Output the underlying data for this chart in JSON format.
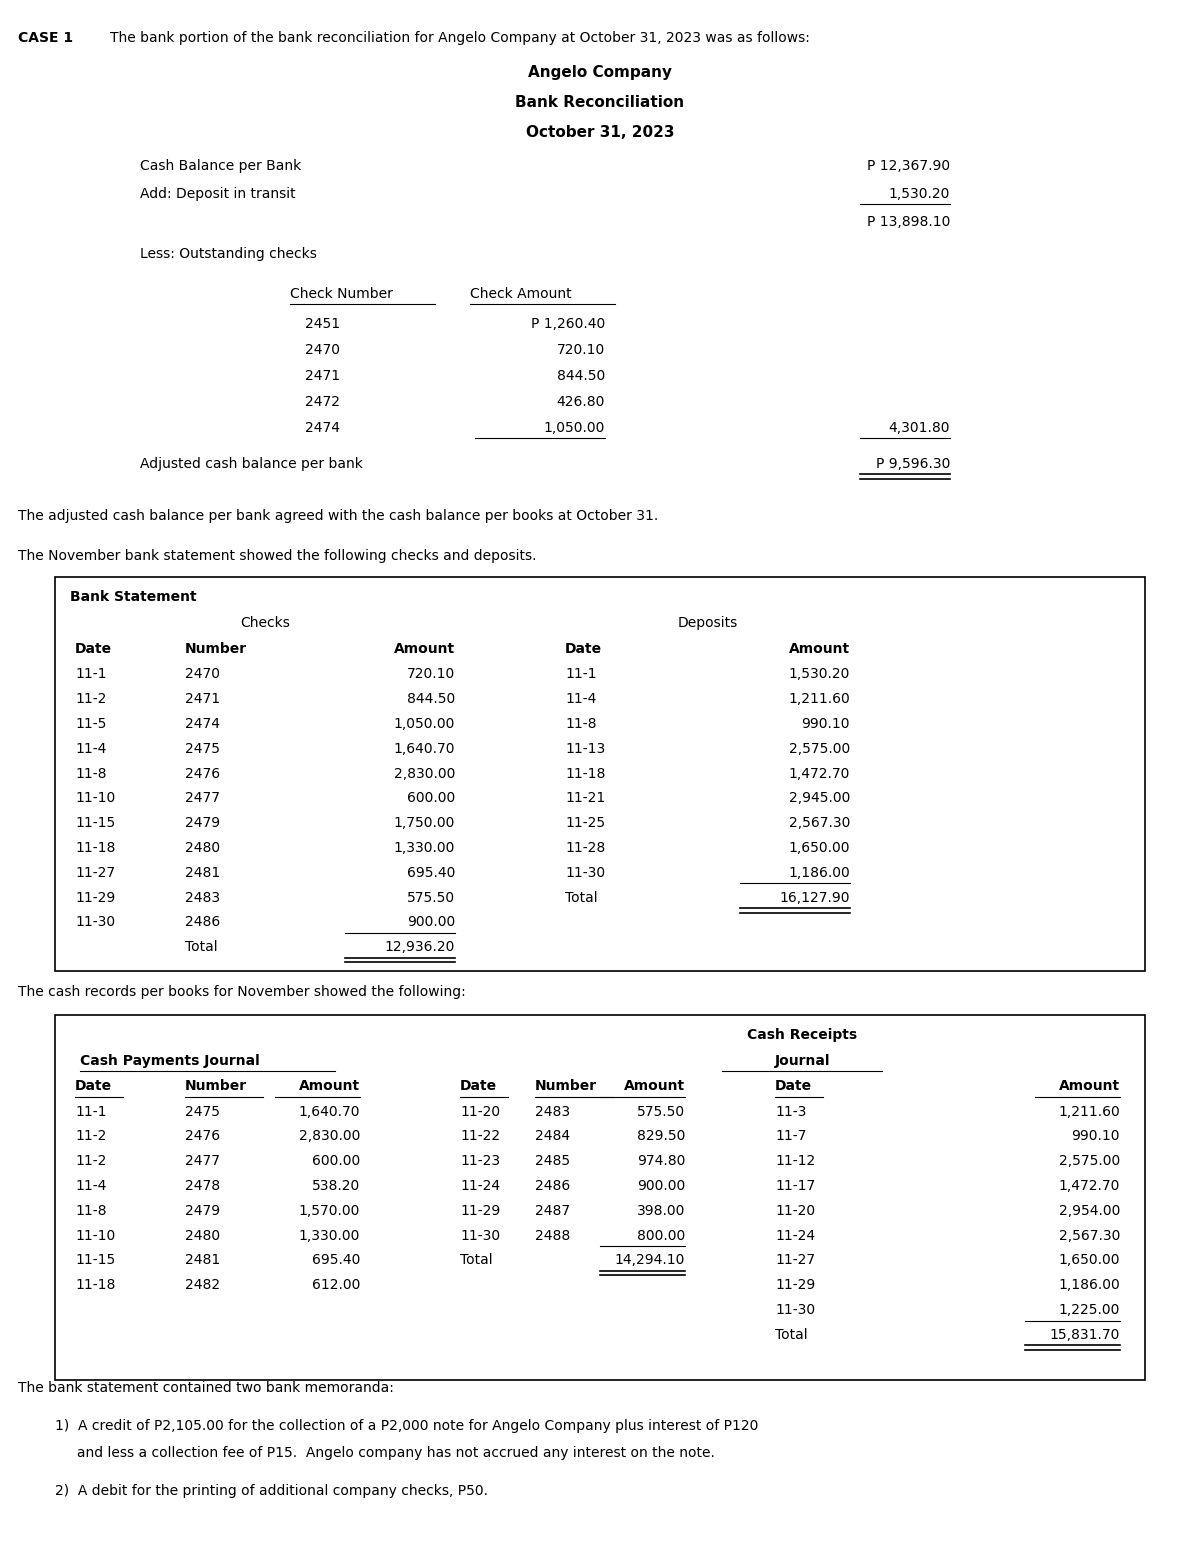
{
  "bg_color": "#ffffff",
  "case1_bold": "CASE 1",
  "case1_text": "The bank portion of the bank reconciliation for Angelo Company at October 31, 2023 was as follows:",
  "reconciliation_title": [
    "Angelo Company",
    "Bank Reconciliation",
    "October 31, 2023"
  ],
  "checks": [
    {
      "number": "2451",
      "amount": "P 1,260.40",
      "underline_num": false
    },
    {
      "number": "2470",
      "amount": "720.10",
      "underline_num": false
    },
    {
      "number": "2471",
      "amount": "844.50",
      "underline_num": false
    },
    {
      "number": "2472",
      "amount": "426.80",
      "underline_num": false
    },
    {
      "number": "2474",
      "amount": "1,050.00",
      "underline_num": true,
      "total": "4,301.80",
      "underline_total": true
    }
  ],
  "adjusted_label": "Adjusted cash balance per bank",
  "adjusted_amount": "P 9,596.30",
  "para1": "The adjusted cash balance per bank agreed with the cash balance per books at October 31.",
  "para2": "The November bank statement showed the following checks and deposits.",
  "bank_checks": [
    [
      "11-1",
      "2470",
      "720.10"
    ],
    [
      "11-2",
      "2471",
      "844.50"
    ],
    [
      "11-5",
      "2474",
      "1,050.00"
    ],
    [
      "11-4",
      "2475",
      "1,640.70"
    ],
    [
      "11-8",
      "2476",
      "2,830.00"
    ],
    [
      "11-10",
      "2477",
      "600.00"
    ],
    [
      "11-15",
      "2479",
      "1,750.00"
    ],
    [
      "11-18",
      "2480",
      "1,330.00"
    ],
    [
      "11-27",
      "2481",
      "695.40"
    ],
    [
      "11-29",
      "2483",
      "575.50"
    ],
    [
      "11-30",
      "2486",
      "900.00"
    ],
    [
      "",
      "Total",
      "12,936.20"
    ]
  ],
  "bank_deposits": [
    [
      "11-1",
      "1,530.20"
    ],
    [
      "11-4",
      "1,211.60"
    ],
    [
      "11-8",
      "990.10"
    ],
    [
      "11-13",
      "2,575.00"
    ],
    [
      "11-18",
      "1,472.70"
    ],
    [
      "11-21",
      "2,945.00"
    ],
    [
      "11-25",
      "2,567.30"
    ],
    [
      "11-28",
      "1,650.00"
    ],
    [
      "11-30",
      "1,186.00"
    ],
    [
      "Total",
      "16,127.90"
    ]
  ],
  "para3": "The cash records per books for November showed the following:",
  "cpj_rows": [
    [
      "11-1",
      "2475",
      "1,640.70"
    ],
    [
      "11-2",
      "2476",
      "2,830.00"
    ],
    [
      "11-2",
      "2477",
      "600.00"
    ],
    [
      "11-4",
      "2478",
      "538.20"
    ],
    [
      "11-8",
      "2479",
      "1,570.00"
    ],
    [
      "11-10",
      "2480",
      "1,330.00"
    ],
    [
      "11-15",
      "2481",
      "695.40"
    ],
    [
      "11-18",
      "2482",
      "612.00"
    ]
  ],
  "crj_rows_left": [
    [
      "11-20",
      "2483",
      "575.50"
    ],
    [
      "11-22",
      "2484",
      "829.50"
    ],
    [
      "11-23",
      "2485",
      "974.80"
    ],
    [
      "11-24",
      "2486",
      "900.00"
    ],
    [
      "11-29",
      "2487",
      "398.00"
    ],
    [
      "11-30",
      "2488",
      "800.00"
    ],
    [
      "Total",
      "",
      "14,294.10"
    ]
  ],
  "crj_rows_right": [
    [
      "11-3",
      "1,211.60"
    ],
    [
      "11-7",
      "990.10"
    ],
    [
      "11-12",
      "2,575.00"
    ],
    [
      "11-17",
      "1,472.70"
    ],
    [
      "11-20",
      "2,954.00"
    ],
    [
      "11-24",
      "2,567.30"
    ],
    [
      "11-27",
      "1,650.00"
    ],
    [
      "11-29",
      "1,186.00"
    ],
    [
      "11-30",
      "1,225.00"
    ],
    [
      "Total",
      "15,831.70"
    ]
  ],
  "memo_header": "The bank statement contained two bank memoranda:",
  "memo1a": "1)  A credit of P2,105.00 for the collection of a P2,000 note for Angelo Company plus interest of P120",
  "memo1b": "     and less a collection fee of P15.  Angelo company has not accrued any interest on the note.",
  "memo2": "2)  A debit for the printing of additional company checks, P50."
}
